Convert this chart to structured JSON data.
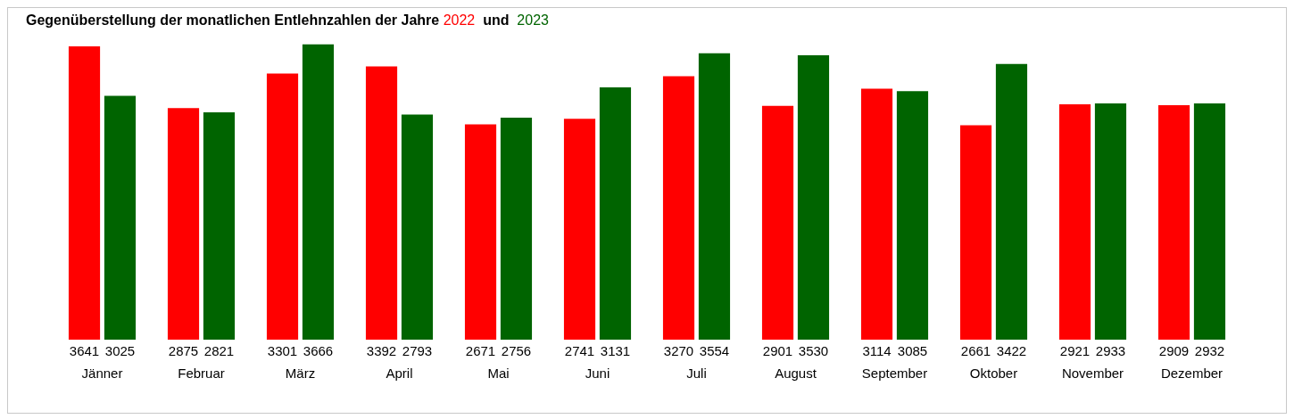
{
  "chart_data": {
    "type": "bar",
    "title": "Gegenüberstellung der monatlichen Entlehnzahlen der Jahre",
    "annotations": [
      "und"
    ],
    "categories": [
      "Jänner",
      "Februar",
      "März",
      "April",
      "Mai",
      "Juni",
      "Juli",
      "August",
      "September",
      "Oktober",
      "November",
      "Dezember"
    ],
    "series": [
      {
        "name": "2022",
        "color": "#ff0000",
        "values": [
          3641,
          2875,
          3301,
          3392,
          2671,
          2741,
          3270,
          2901,
          3114,
          2661,
          2921,
          2909
        ]
      },
      {
        "name": "2023",
        "color": "#006400",
        "values": [
          3025,
          2821,
          3666,
          2793,
          2756,
          3131,
          3554,
          3530,
          3085,
          3422,
          2933,
          2932
        ]
      }
    ],
    "data_labels": true
  }
}
